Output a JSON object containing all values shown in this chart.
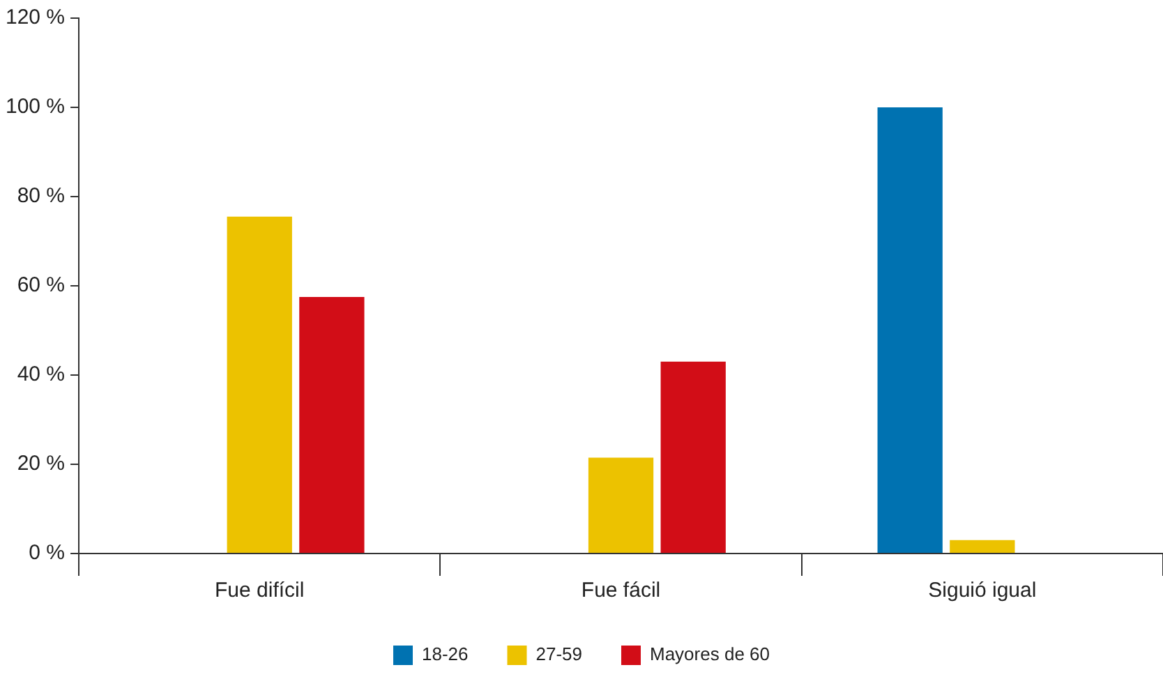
{
  "chart_data": {
    "type": "bar",
    "categories": [
      "Fue difícil",
      "Fue fácil",
      "Siguió igual"
    ],
    "series": [
      {
        "name": "18-26",
        "color": "#0072b1",
        "values": [
          0,
          0,
          100
        ]
      },
      {
        "name": "27-59",
        "color": "#ecc200",
        "values": [
          75.5,
          21.5,
          3
        ]
      },
      {
        "name": "Mayores de 60",
        "color": "#d20d17",
        "values": [
          57.5,
          43,
          0
        ]
      }
    ],
    "ylim": [
      0,
      120
    ],
    "yticks": [
      {
        "value": 0,
        "label": "0 %"
      },
      {
        "value": 20,
        "label": "20 %"
      },
      {
        "value": 40,
        "label": "40 %"
      },
      {
        "value": 60,
        "label": "60 %"
      },
      {
        "value": 80,
        "label": "80 %"
      },
      {
        "value": 100,
        "label": "100 %"
      },
      {
        "value": 120,
        "label": "120 %"
      }
    ],
    "grid": false,
    "legend": "bottom"
  }
}
